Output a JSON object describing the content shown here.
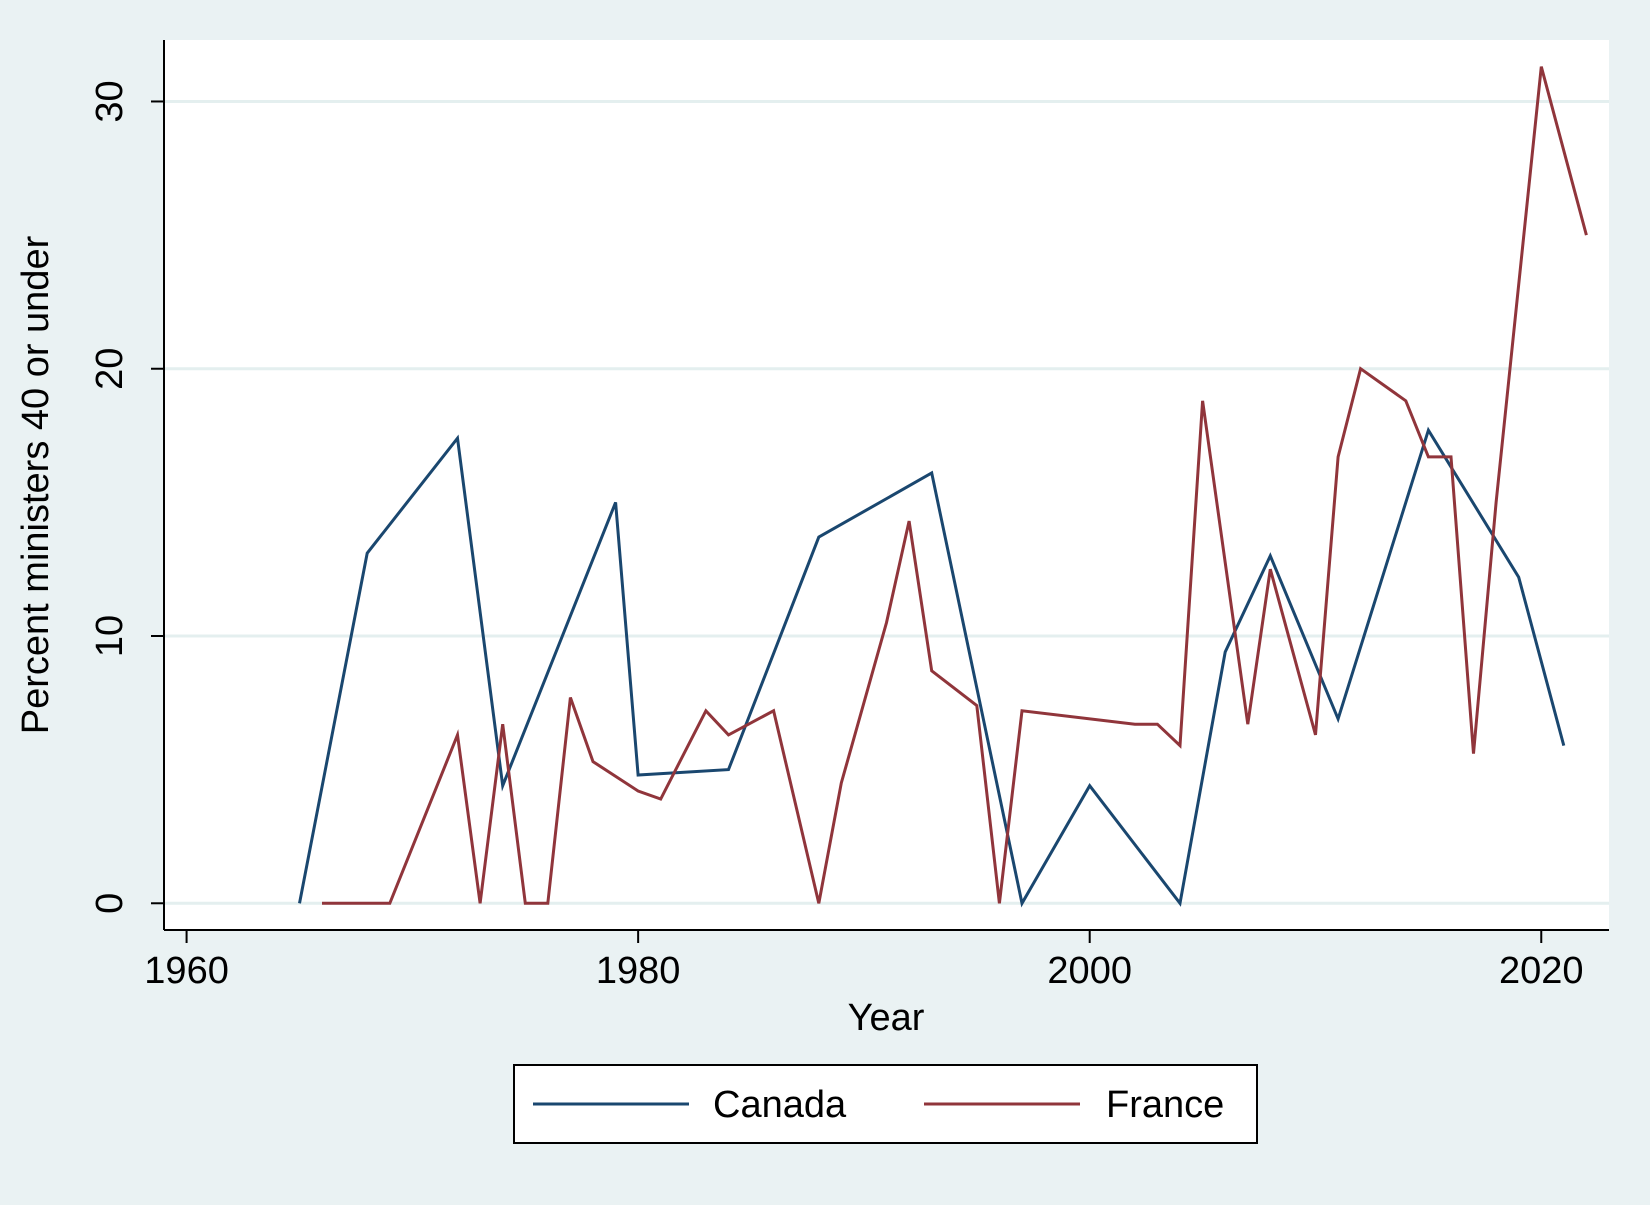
{
  "chart_data": {
    "type": "line",
    "title": "",
    "xlabel": "Year",
    "ylabel": "Percent ministers 40 or under",
    "xlim": [
      1959,
      2023
    ],
    "ylim": [
      -1,
      32.3
    ],
    "x_ticks": [
      1960,
      1980,
      2000,
      2020
    ],
    "y_ticks": [
      0,
      10,
      20,
      30
    ],
    "grid": "horizontal",
    "legend_position": "bottom",
    "series": [
      {
        "name": "Canada",
        "color": "#1a476f",
        "points": [
          [
            1965,
            0
          ],
          [
            1968,
            13.1
          ],
          [
            1972,
            17.4
          ],
          [
            1974,
            4.4
          ],
          [
            1979,
            15.0
          ],
          [
            1980,
            4.8
          ],
          [
            1984,
            5.0
          ],
          [
            1988,
            13.7
          ],
          [
            1993,
            16.1
          ],
          [
            1997,
            0
          ],
          [
            2000,
            4.4
          ],
          [
            2004,
            0
          ],
          [
            2006,
            9.4
          ],
          [
            2008,
            13.0
          ],
          [
            2011,
            6.9
          ],
          [
            2015,
            17.7
          ],
          [
            2019,
            12.2
          ],
          [
            2021,
            5.9
          ]
        ]
      },
      {
        "name": "France",
        "color": "#90353b",
        "points": [
          [
            1966,
            0
          ],
          [
            1967,
            0
          ],
          [
            1968,
            0
          ],
          [
            1969,
            0
          ],
          [
            1972,
            6.3
          ],
          [
            1973,
            0
          ],
          [
            1974,
            6.7
          ],
          [
            1975,
            0
          ],
          [
            1976,
            0
          ],
          [
            1977,
            7.7
          ],
          [
            1978,
            5.3
          ],
          [
            1980,
            4.2
          ],
          [
            1981,
            3.9
          ],
          [
            1983,
            7.2
          ],
          [
            1984,
            6.3
          ],
          [
            1986,
            7.2
          ],
          [
            1988,
            0
          ],
          [
            1989,
            4.5
          ],
          [
            1991,
            10.5
          ],
          [
            1992,
            14.3
          ],
          [
            1993,
            8.7
          ],
          [
            1995,
            7.4
          ],
          [
            1996,
            0
          ],
          [
            1997,
            7.2
          ],
          [
            2002,
            6.7
          ],
          [
            2003,
            6.7
          ],
          [
            2004,
            5.9
          ],
          [
            2005,
            18.8
          ],
          [
            2007,
            6.7
          ],
          [
            2008,
            12.5
          ],
          [
            2010,
            6.3
          ],
          [
            2011,
            16.7
          ],
          [
            2012,
            20.0
          ],
          [
            2014,
            18.8
          ],
          [
            2015,
            16.7
          ],
          [
            2016,
            16.7
          ],
          [
            2017,
            5.6
          ],
          [
            2018,
            15.0
          ],
          [
            2020,
            31.3
          ],
          [
            2022,
            25.0
          ]
        ]
      }
    ]
  }
}
